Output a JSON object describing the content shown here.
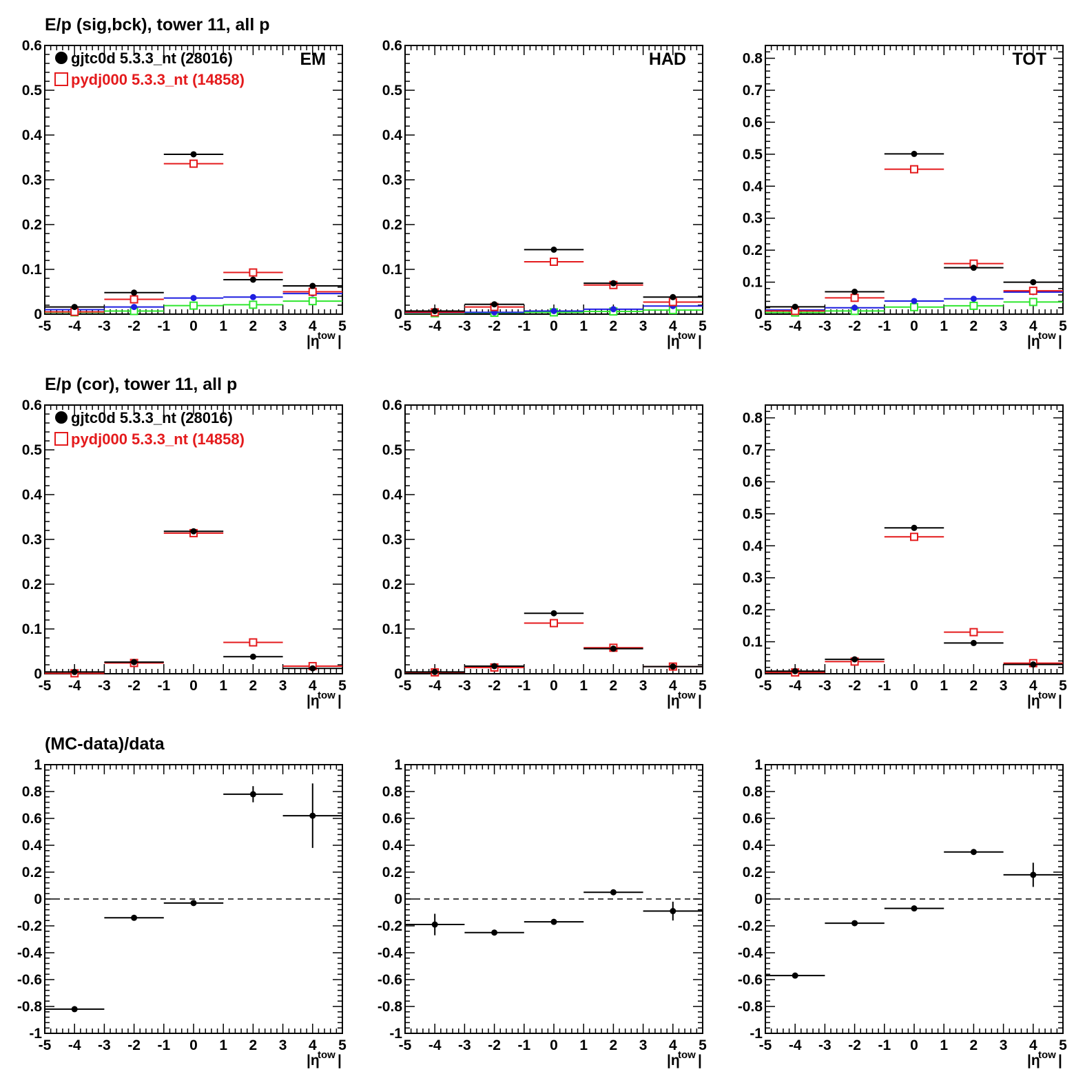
{
  "rows": [
    {
      "title": "E/p (sig,bck), tower 11, all p"
    },
    {
      "title": "E/p (cor), tower 11, all p"
    },
    {
      "title": "(MC-data)/data"
    }
  ],
  "legend": [
    {
      "label": "gjtc0d 5.3.3_nt (28016)",
      "color": "#000000",
      "marker": "filled-circle"
    },
    {
      "label": "pydj000 5.3.3_nt (14858)",
      "color": "#e41a1c",
      "marker": "open-square"
    }
  ],
  "axis": {
    "x_label": "|η",
    "x_sup": "tow",
    "x_label_end": "|",
    "x_ticks": [
      "-5",
      "-4",
      "-3",
      "-2",
      "-1",
      "0",
      "1",
      "2",
      "3",
      "4",
      "5"
    ]
  },
  "colors": {
    "data": "#000000",
    "mc": "#e41a1c",
    "blue": "#1f1fe0",
    "green": "#2ee62e"
  },
  "chart_data": [
    {
      "id": "sig-em",
      "type": "line",
      "corner_label": "EM",
      "row": 0,
      "col": 0,
      "xlim": [
        -5,
        5
      ],
      "ylim": [
        0,
        0.6
      ],
      "yticks": [
        "0",
        "0.1",
        "0.2",
        "0.3",
        "0.4",
        "0.5",
        "0.6"
      ],
      "show_legend": true,
      "x_bins": [
        [
          -5,
          -3
        ],
        [
          -3,
          -1
        ],
        [
          -1,
          1
        ],
        [
          1,
          3
        ],
        [
          3,
          5
        ]
      ],
      "series": [
        {
          "values": [
            0.016,
            0.048,
            0.357,
            0.077,
            0.063
          ],
          "errors": [
            0.002,
            0.002,
            0.003,
            0.002,
            0.002
          ],
          "style": "data"
        },
        {
          "values": [
            0.005,
            0.033,
            0.336,
            0.093,
            0.05
          ],
          "errors": [
            0.002,
            0.002,
            0.003,
            0.002,
            0.002
          ],
          "style": "mc"
        },
        {
          "values": [
            0.01,
            0.016,
            0.036,
            0.038,
            0.046
          ],
          "errors": [
            0.001,
            0.001,
            0.001,
            0.001,
            0.001
          ],
          "style": "blue"
        },
        {
          "values": [
            0.004,
            0.007,
            0.019,
            0.021,
            0.029
          ],
          "errors": [
            0.001,
            0.001,
            0.001,
            0.001,
            0.001
          ],
          "style": "green"
        }
      ]
    },
    {
      "id": "sig-had",
      "type": "line",
      "corner_label": "HAD",
      "row": 0,
      "col": 1,
      "xlim": [
        -5,
        5
      ],
      "ylim": [
        0,
        0.6
      ],
      "yticks": [
        "0",
        "0.1",
        "0.2",
        "0.3",
        "0.4",
        "0.5",
        "0.6"
      ],
      "show_legend": false,
      "x_bins": [
        [
          -5,
          -3
        ],
        [
          -3,
          -1
        ],
        [
          -1,
          1
        ],
        [
          1,
          3
        ],
        [
          3,
          5
        ]
      ],
      "series": [
        {
          "values": [
            0.007,
            0.022,
            0.144,
            0.069,
            0.038
          ],
          "errors": [
            0.002,
            0.002,
            0.002,
            0.002,
            0.002
          ],
          "style": "data"
        },
        {
          "values": [
            0.004,
            0.016,
            0.117,
            0.065,
            0.027
          ],
          "errors": [
            0.002,
            0.002,
            0.002,
            0.002,
            0.002
          ],
          "style": "mc"
        },
        {
          "values": [
            0.003,
            0.004,
            0.007,
            0.011,
            0.018
          ],
          "errors": [
            0.001,
            0.001,
            0.001,
            0.001,
            0.001
          ],
          "style": "blue"
        },
        {
          "values": [
            0.002,
            0.003,
            0.004,
            0.006,
            0.009
          ],
          "errors": [
            0.001,
            0.001,
            0.001,
            0.001,
            0.001
          ],
          "style": "green"
        }
      ]
    },
    {
      "id": "sig-tot",
      "type": "line",
      "corner_label": "TOT",
      "row": 0,
      "col": 2,
      "xlim": [
        -5,
        5
      ],
      "ylim": [
        0,
        0.84
      ],
      "yticks": [
        "0",
        "0.1",
        "0.2",
        "0.3",
        "0.4",
        "0.5",
        "0.6",
        "0.7",
        "0.8"
      ],
      "show_legend": false,
      "x_bins": [
        [
          -5,
          -3
        ],
        [
          -3,
          -1
        ],
        [
          -1,
          1
        ],
        [
          1,
          3
        ],
        [
          3,
          5
        ]
      ],
      "series": [
        {
          "values": [
            0.023,
            0.07,
            0.501,
            0.145,
            0.1
          ],
          "errors": [
            0.002,
            0.002,
            0.003,
            0.002,
            0.002
          ],
          "style": "data"
        },
        {
          "values": [
            0.01,
            0.051,
            0.453,
            0.158,
            0.073
          ],
          "errors": [
            0.002,
            0.002,
            0.003,
            0.002,
            0.002
          ],
          "style": "mc"
        },
        {
          "values": [
            0.013,
            0.02,
            0.041,
            0.048,
            0.069
          ],
          "errors": [
            0.001,
            0.001,
            0.001,
            0.001,
            0.001
          ],
          "style": "blue"
        },
        {
          "values": [
            0.005,
            0.01,
            0.022,
            0.026,
            0.038
          ],
          "errors": [
            0.001,
            0.001,
            0.001,
            0.001,
            0.001
          ],
          "style": "green"
        }
      ]
    },
    {
      "id": "cor-em",
      "type": "line",
      "corner_label": "",
      "row": 1,
      "col": 0,
      "xlim": [
        -5,
        5
      ],
      "ylim": [
        0,
        0.6
      ],
      "yticks": [
        "0",
        "0.1",
        "0.2",
        "0.3",
        "0.4",
        "0.5",
        "0.6"
      ],
      "show_legend": true,
      "x_bins": [
        [
          -5,
          -3
        ],
        [
          -3,
          -1
        ],
        [
          -1,
          1
        ],
        [
          1,
          3
        ],
        [
          3,
          5
        ]
      ],
      "series": [
        {
          "values": [
            0.004,
            0.026,
            0.318,
            0.038,
            0.012
          ],
          "errors": [
            0.005,
            0.002,
            0.003,
            0.002,
            0.004
          ],
          "style": "data"
        },
        {
          "values": [
            0.001,
            0.024,
            0.314,
            0.07,
            0.017
          ],
          "errors": [
            0.002,
            0.002,
            0.003,
            0.002,
            0.002
          ],
          "style": "mc"
        }
      ]
    },
    {
      "id": "cor-had",
      "type": "line",
      "corner_label": "",
      "row": 1,
      "col": 1,
      "xlim": [
        -5,
        5
      ],
      "ylim": [
        0,
        0.6
      ],
      "yticks": [
        "0",
        "0.1",
        "0.2",
        "0.3",
        "0.4",
        "0.5",
        "0.6"
      ],
      "show_legend": false,
      "x_bins": [
        [
          -5,
          -3
        ],
        [
          -3,
          -1
        ],
        [
          -1,
          1
        ],
        [
          1,
          3
        ],
        [
          3,
          5
        ]
      ],
      "series": [
        {
          "values": [
            0.004,
            0.017,
            0.135,
            0.056,
            0.016
          ],
          "errors": [
            0.003,
            0.002,
            0.002,
            0.002,
            0.002
          ],
          "style": "data"
        },
        {
          "values": [
            0.003,
            0.014,
            0.113,
            0.058,
            0.016
          ],
          "errors": [
            0.002,
            0.002,
            0.002,
            0.002,
            0.002
          ],
          "style": "mc"
        }
      ]
    },
    {
      "id": "cor-tot",
      "type": "line",
      "corner_label": "",
      "row": 1,
      "col": 2,
      "xlim": [
        -5,
        5
      ],
      "ylim": [
        0,
        0.84
      ],
      "yticks": [
        "0",
        "0.1",
        "0.2",
        "0.3",
        "0.4",
        "0.5",
        "0.6",
        "0.7",
        "0.8"
      ],
      "show_legend": false,
      "x_bins": [
        [
          -5,
          -3
        ],
        [
          -3,
          -1
        ],
        [
          -1,
          1
        ],
        [
          1,
          3
        ],
        [
          3,
          5
        ]
      ],
      "series": [
        {
          "values": [
            0.008,
            0.045,
            0.456,
            0.096,
            0.029
          ],
          "errors": [
            0.005,
            0.002,
            0.003,
            0.002,
            0.003
          ],
          "style": "data"
        },
        {
          "values": [
            0.004,
            0.038,
            0.428,
            0.13,
            0.033
          ],
          "errors": [
            0.002,
            0.002,
            0.003,
            0.002,
            0.002
          ],
          "style": "mc"
        }
      ]
    },
    {
      "id": "ratio-em",
      "type": "scatter",
      "corner_label": "",
      "row": 2,
      "col": 0,
      "xlim": [
        -5,
        5
      ],
      "ylim": [
        -1,
        1
      ],
      "yticks": [
        "-1",
        "-0.8",
        "-0.6",
        "-0.4",
        "-0.2",
        "0",
        "0.2",
        "0.4",
        "0.6",
        "0.8",
        "1"
      ],
      "show_legend": false,
      "reference_line": 0,
      "x_bins": [
        [
          -5,
          -3
        ],
        [
          -3,
          -1
        ],
        [
          -1,
          1
        ],
        [
          1,
          3
        ],
        [
          3,
          5
        ]
      ],
      "series": [
        {
          "values": [
            -0.82,
            -0.14,
            -0.03,
            0.78,
            0.62
          ],
          "errors": [
            0.02,
            0.02,
            0.01,
            0.06,
            0.24
          ],
          "style": "data"
        }
      ]
    },
    {
      "id": "ratio-had",
      "type": "scatter",
      "corner_label": "",
      "row": 2,
      "col": 1,
      "xlim": [
        -5,
        5
      ],
      "ylim": [
        -1,
        1
      ],
      "yticks": [
        "-1",
        "-0.8",
        "-0.6",
        "-0.4",
        "-0.2",
        "0",
        "0.2",
        "0.4",
        "0.6",
        "0.8",
        "1"
      ],
      "show_legend": false,
      "reference_line": 0,
      "x_bins": [
        [
          -5,
          -3
        ],
        [
          -3,
          -1
        ],
        [
          -1,
          1
        ],
        [
          1,
          3
        ],
        [
          3,
          5
        ]
      ],
      "series": [
        {
          "values": [
            -0.19,
            -0.25,
            -0.17,
            0.05,
            -0.09
          ],
          "errors": [
            0.08,
            0.01,
            0.01,
            0.01,
            0.07
          ],
          "style": "data"
        }
      ]
    },
    {
      "id": "ratio-tot",
      "type": "scatter",
      "corner_label": "",
      "row": 2,
      "col": 2,
      "xlim": [
        -5,
        5
      ],
      "ylim": [
        -1,
        1
      ],
      "yticks": [
        "-1",
        "-0.8",
        "-0.6",
        "-0.4",
        "-0.2",
        "0",
        "0.2",
        "0.4",
        "0.6",
        "0.8",
        "1"
      ],
      "show_legend": false,
      "reference_line": 0,
      "x_bins": [
        [
          -5,
          -3
        ],
        [
          -3,
          -1
        ],
        [
          -1,
          1
        ],
        [
          1,
          3
        ],
        [
          3,
          5
        ]
      ],
      "series": [
        {
          "values": [
            -0.57,
            -0.18,
            -0.07,
            0.35,
            0.18
          ],
          "errors": [
            0.02,
            0.01,
            0.01,
            0.01,
            0.09
          ],
          "style": "data"
        }
      ]
    }
  ]
}
